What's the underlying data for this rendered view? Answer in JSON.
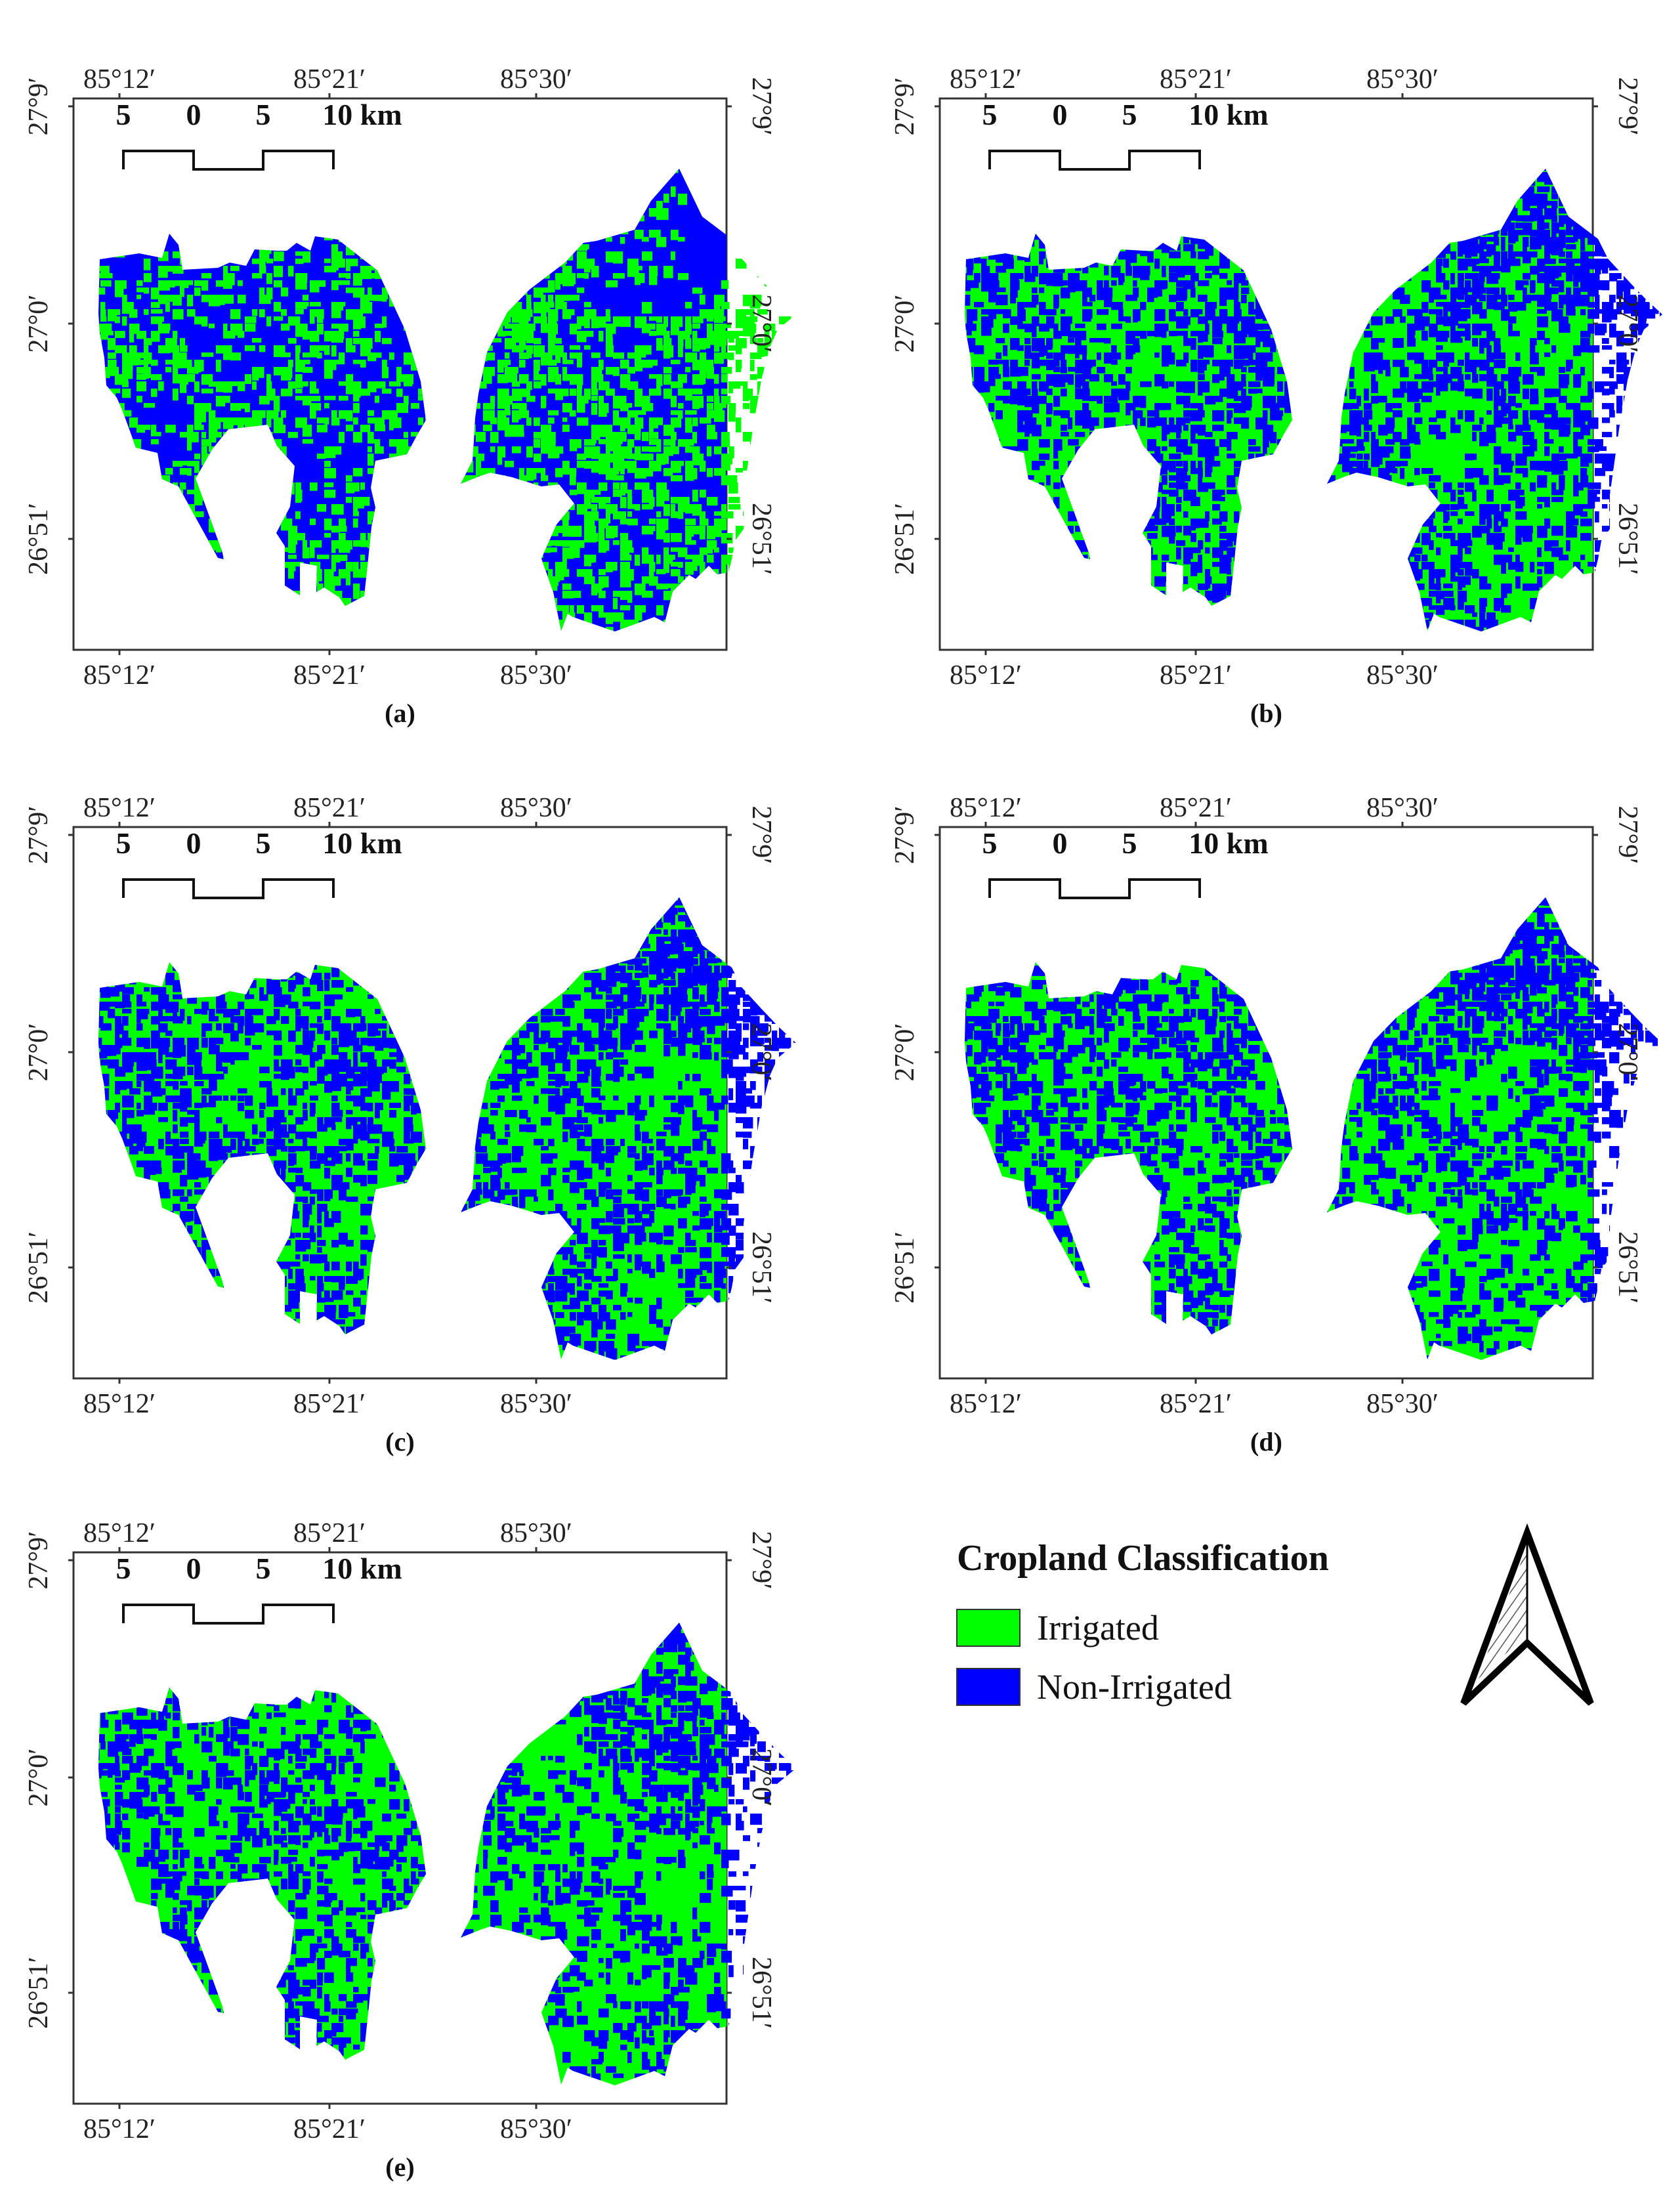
{
  "maps": [
    {
      "id": "a",
      "caption": "(a)",
      "irrigated_share": 0.45
    },
    {
      "id": "b",
      "caption": "(b)",
      "irrigated_share": 0.55
    },
    {
      "id": "c",
      "caption": "(c)",
      "irrigated_share": 0.58
    },
    {
      "id": "d",
      "caption": "(d)",
      "irrigated_share": 0.57
    },
    {
      "id": "e",
      "caption": "(e)",
      "irrigated_share": 0.64
    }
  ],
  "axes": {
    "x_ticks": [
      "85°12′",
      "85°21′",
      "85°30′"
    ],
    "y_ticks": [
      "27°9′",
      "27°0′",
      "26°51′"
    ]
  },
  "scale_bar": {
    "labels": [
      "5",
      "0",
      "5",
      "10 km"
    ]
  },
  "legend": {
    "title": "Cropland Classification",
    "items": [
      {
        "label": "Irrigated",
        "color": "#00ff00"
      },
      {
        "label": "Non-Irrigated",
        "color": "#0000ff"
      }
    ]
  },
  "north_arrow": {
    "icon": "north-arrow-icon"
  }
}
